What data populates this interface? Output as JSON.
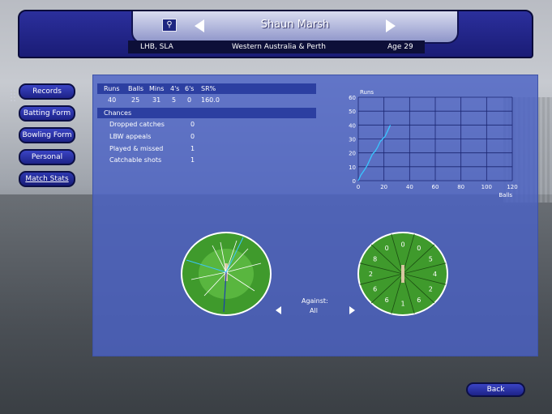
{
  "header": {
    "player_name": "Shaun Marsh",
    "batting_style": "LHB, SLA",
    "team": "Western Australia & Perth",
    "age": "Age 29",
    "bat_icon": "bat-ball-icon"
  },
  "side_menu": [
    {
      "label": "Records"
    },
    {
      "label": "Batting Form"
    },
    {
      "label": "Bowling Form"
    },
    {
      "label": "Personal"
    },
    {
      "label": "Match Stats",
      "active": true
    }
  ],
  "stats": {
    "headers": [
      "Runs",
      "Balls",
      "Mins",
      "4's",
      "6's",
      "SR%"
    ],
    "values": [
      "40",
      "25",
      "31",
      "5",
      "0",
      "160.0"
    ]
  },
  "chances": {
    "title": "Chances",
    "rows": [
      {
        "label": "Dropped catches",
        "value": "0"
      },
      {
        "label": "LBW appeals",
        "value": "0"
      },
      {
        "label": "Played & missed",
        "value": "1"
      },
      {
        "label": "Catchable shots",
        "value": "1"
      }
    ]
  },
  "chart_data": {
    "type": "line",
    "title": "",
    "ylabel": "Runs",
    "xlabel": "Balls",
    "xlim": [
      0,
      120
    ],
    "ylim": [
      0,
      60
    ],
    "xticks": [
      "0",
      "20",
      "40",
      "60",
      "80",
      "100",
      "120"
    ],
    "yticks": [
      "0",
      "10",
      "20",
      "30",
      "40",
      "50",
      "60"
    ],
    "grid": true,
    "series": [
      {
        "color": "#39c6ff",
        "x": [
          0,
          2,
          5,
          7,
          9,
          11,
          13,
          15,
          17,
          19,
          21,
          23,
          25
        ],
        "y": [
          0,
          4,
          8,
          11,
          15,
          19,
          21,
          24,
          28,
          30,
          32,
          36,
          40
        ]
      }
    ]
  },
  "scoring_zones": {
    "values": [
      "0",
      "0",
      "5",
      "4",
      "2",
      "6",
      "1",
      "6",
      "6",
      "2",
      "8",
      "0"
    ]
  },
  "against": {
    "label": "Against:",
    "value": "All"
  },
  "back_label": "Back",
  "colors": {
    "panel": "#4a62c4",
    "header": "#1a1c76",
    "button": "#2a33a8",
    "line": "#39c6ff",
    "field": "#3f9a2c"
  }
}
